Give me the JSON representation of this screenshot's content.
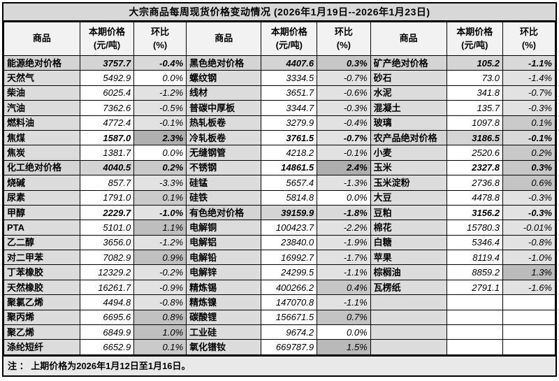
{
  "title": "大宗商品每周现货价格变动情况 (2026年1月19日--2026年1月23日)",
  "footnote": "注 ： 上期价格为2026年1月12日至1月16日。",
  "column_headers": {
    "commodity": "商品",
    "price_line1": "本期价格",
    "price_line2": "(元/吨)",
    "pct_line1": "环比",
    "pct_line2": "(%)"
  },
  "colors": {
    "title_bg": "#d8d8d8",
    "header_bg": "#f2f2f2",
    "name_bg": "#dcdcdc",
    "section_bg": "#d4d4d4",
    "section_pct_bg": "#d9d9d9",
    "pct_negative": "#e2e2e2",
    "pct_zero": "#ffffff",
    "pct_positive_base": "#c9c9c9",
    "pct_positive_dark": "#acacac",
    "border": "#000000"
  },
  "groups": [
    {
      "rows": [
        {
          "name": "能源绝对价格",
          "price": "3757.7",
          "pct": "-0.4%",
          "section": true
        },
        {
          "name": "天然气",
          "price": "5492.9",
          "pct": "0.0%",
          "section": false
        },
        {
          "name": "柴油",
          "price": "6025.4",
          "pct": "-1.2%",
          "section": false
        },
        {
          "name": "汽油",
          "price": "7362.6",
          "pct": "-0.5%",
          "section": false
        },
        {
          "name": "燃料油",
          "price": "4772.4",
          "pct": "-0.1%",
          "section": false
        },
        {
          "name": "焦煤",
          "price": "1587.0",
          "pct": "2.3%",
          "section": false
        },
        {
          "name": "焦炭",
          "price": "1381.7",
          "pct": "0.0%",
          "section": false
        },
        {
          "name": "化工绝对价格",
          "price": "4040.5",
          "pct": "0.2%",
          "section": true
        },
        {
          "name": "烧碱",
          "price": "857.7",
          "pct": "-3.3%",
          "section": false
        },
        {
          "name": "尿素",
          "price": "1791.0",
          "pct": "0.1%",
          "section": false
        },
        {
          "name": "甲醇",
          "price": "2229.7",
          "pct": "-1.0%",
          "section": false
        },
        {
          "name": "PTA",
          "price": "5101.0",
          "pct": "1.1%",
          "section": false
        },
        {
          "name": "乙二醇",
          "price": "3656.0",
          "pct": "-1.2%",
          "section": false
        },
        {
          "name": "对二甲苯",
          "price": "7082.9",
          "pct": "0.9%",
          "section": false
        },
        {
          "name": "丁苯橡胶",
          "price": "12329.2",
          "pct": "-0.2%",
          "section": false
        },
        {
          "name": "天然橡胶",
          "price": "16261.7",
          "pct": "-0.9%",
          "section": false
        },
        {
          "name": "聚氯乙烯",
          "price": "4494.8",
          "pct": "-0.8%",
          "section": false
        },
        {
          "name": "聚丙烯",
          "price": "6695.6",
          "pct": "0.8%",
          "section": false
        },
        {
          "name": "聚乙烯",
          "price": "6849.9",
          "pct": "1.0%",
          "section": false
        },
        {
          "name": "涤纶短纤",
          "price": "6652.9",
          "pct": "0.1%",
          "section": false
        }
      ]
    },
    {
      "rows": [
        {
          "name": "黑色绝对价格",
          "price": "4407.6",
          "pct": "0.3%",
          "section": true
        },
        {
          "name": "螺纹钢",
          "price": "3334.5",
          "pct": "-0.7%",
          "section": false
        },
        {
          "name": "线材",
          "price": "3651.7",
          "pct": "-0.6%",
          "section": false
        },
        {
          "name": "普碳中厚板",
          "price": "3344.7",
          "pct": "-0.3%",
          "section": false
        },
        {
          "name": "热轧板卷",
          "price": "3279.9",
          "pct": "-0.4%",
          "section": false
        },
        {
          "name": "冷轧板卷",
          "price": "3761.5",
          "pct": "-0.7%",
          "section": false
        },
        {
          "name": "无缝钢管",
          "price": "4218.2",
          "pct": "-0.1%",
          "section": false
        },
        {
          "name": "不锈钢",
          "price": "14861.5",
          "pct": "2.4%",
          "section": false
        },
        {
          "name": "硅锰",
          "price": "5657.4",
          "pct": "-1.3%",
          "section": false
        },
        {
          "name": "硅铁",
          "price": "5814.8",
          "pct": "0.0%",
          "section": false
        },
        {
          "name": "有色绝对价格",
          "price": "39159.9",
          "pct": "-1.8%",
          "section": true
        },
        {
          "name": "电解铜",
          "price": "100423.7",
          "pct": "-2.2%",
          "section": false
        },
        {
          "name": "电解铝",
          "price": "23840.0",
          "pct": "-1.9%",
          "section": false
        },
        {
          "name": "电解铅",
          "price": "16992.7",
          "pct": "-1.7%",
          "section": false
        },
        {
          "name": "电解锌",
          "price": "24299.5",
          "pct": "-1.1%",
          "section": false
        },
        {
          "name": "精炼锡",
          "price": "400266.2",
          "pct": "0.4%",
          "section": false
        },
        {
          "name": "精炼镍",
          "price": "147070.8",
          "pct": "-1.1%",
          "section": false
        },
        {
          "name": "碳酸锂",
          "price": "156671.5",
          "pct": "0.7%",
          "section": false
        },
        {
          "name": "工业硅",
          "price": "9674.2",
          "pct": "0.0%",
          "section": false
        },
        {
          "name": "氧化镨钕",
          "price": "669787.9",
          "pct": "1.5%",
          "section": false
        }
      ]
    },
    {
      "rows": [
        {
          "name": "矿产绝对价格",
          "price": "105.2",
          "pct": "-1.1%",
          "section": true
        },
        {
          "name": "砂石",
          "price": "73.0",
          "pct": "-1.4%",
          "section": false
        },
        {
          "name": "水泥",
          "price": "341.8",
          "pct": "-0.7%",
          "section": false
        },
        {
          "name": "混凝土",
          "price": "135.7",
          "pct": "-0.3%",
          "section": false
        },
        {
          "name": "玻璃",
          "price": "1097.8",
          "pct": "0.1%",
          "section": false
        },
        {
          "name": "农产品绝对价格",
          "price": "3186.5",
          "pct": "-0.1%",
          "section": true
        },
        {
          "name": "小麦",
          "price": "2520.6",
          "pct": "0.2%",
          "section": false
        },
        {
          "name": "玉米",
          "price": "2327.8",
          "pct": "0.3%",
          "section": false
        },
        {
          "name": "玉米淀粉",
          "price": "2736.8",
          "pct": "0.6%",
          "section": false
        },
        {
          "name": "大豆",
          "price": "4478.8",
          "pct": "-0.3%",
          "section": false
        },
        {
          "name": "豆粕",
          "price": "3156.2",
          "pct": "-0.3%",
          "section": false
        },
        {
          "name": "棉花",
          "price": "15780.3",
          "pct": "-0.01%",
          "section": false
        },
        {
          "name": "白糖",
          "price": "5346.4",
          "pct": "-0.8%",
          "section": false
        },
        {
          "name": "苹果",
          "price": "8119.4",
          "pct": "-1.0%",
          "section": false
        },
        {
          "name": "棕榈油",
          "price": "8859.2",
          "pct": "1.3%",
          "section": false
        },
        {
          "name": "瓦楞纸",
          "price": "2791.1",
          "pct": "-1.6%",
          "section": false
        },
        {
          "name": "",
          "price": "",
          "pct": "",
          "section": false
        },
        {
          "name": "",
          "price": "",
          "pct": "",
          "section": false
        },
        {
          "name": "",
          "price": "",
          "pct": "",
          "section": false
        },
        {
          "name": "",
          "price": "",
          "pct": "",
          "section": false
        }
      ]
    }
  ]
}
